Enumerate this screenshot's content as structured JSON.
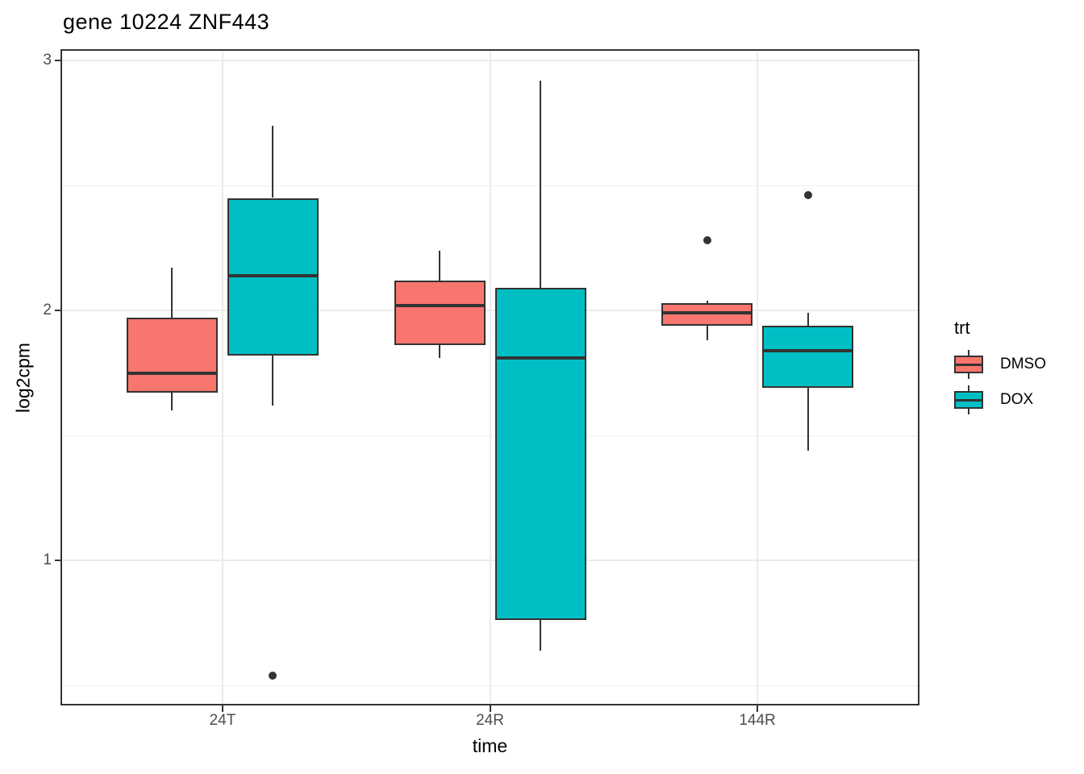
{
  "title": "gene 10224 ZNF443",
  "colors": {
    "dmso_fill": "#F8766D",
    "dox_fill": "#00BFC4",
    "stroke": "#333333",
    "gridline_major": "#EBEBEB",
    "tick_label": "#4D4D4D"
  },
  "chart_data": {
    "type": "boxplot",
    "title": "gene 10224 ZNF443",
    "xlabel": "time",
    "ylabel": "log2cpm",
    "categories": [
      "24T",
      "24R",
      "144R"
    ],
    "y_major_ticks": [
      1,
      2,
      3
    ],
    "y_minor_gridlines": [
      0.5,
      1.5,
      2.5
    ],
    "ylim": [
      0.43,
      3.04
    ],
    "grid": "horizontal major+minor, vertical major at category centers",
    "legend": {
      "title": "trt",
      "position": "right",
      "entries": [
        {
          "label": "DMSO",
          "color": "#F8766D"
        },
        {
          "label": "DOX",
          "color": "#00BFC4"
        }
      ]
    },
    "series": [
      {
        "name": "DMSO",
        "color": "#F8766D",
        "boxes": [
          {
            "category": "24T",
            "whisker_low": 1.6,
            "q1": 1.67,
            "median": 1.75,
            "q3": 1.97,
            "whisker_high": 2.17,
            "outliers": []
          },
          {
            "category": "24R",
            "whisker_low": 1.81,
            "q1": 1.86,
            "median": 2.02,
            "q3": 2.12,
            "whisker_high": 2.24,
            "outliers": []
          },
          {
            "category": "144R",
            "whisker_low": 1.88,
            "q1": 1.94,
            "median": 1.99,
            "q3": 2.03,
            "whisker_high": 2.04,
            "outliers": [
              2.28
            ]
          }
        ]
      },
      {
        "name": "DOX",
        "color": "#00BFC4",
        "boxes": [
          {
            "category": "24T",
            "whisker_low": 1.62,
            "q1": 1.82,
            "median": 2.14,
            "q3": 2.45,
            "whisker_high": 2.74,
            "outliers": [
              0.54
            ]
          },
          {
            "category": "24R",
            "whisker_low": 0.64,
            "q1": 0.76,
            "median": 1.81,
            "q3": 2.09,
            "whisker_high": 2.92,
            "outliers": []
          },
          {
            "category": "144R",
            "whisker_low": 1.44,
            "q1": 1.69,
            "median": 1.84,
            "q3": 1.94,
            "whisker_high": 1.99,
            "outliers": [
              2.46
            ]
          }
        ]
      }
    ]
  }
}
